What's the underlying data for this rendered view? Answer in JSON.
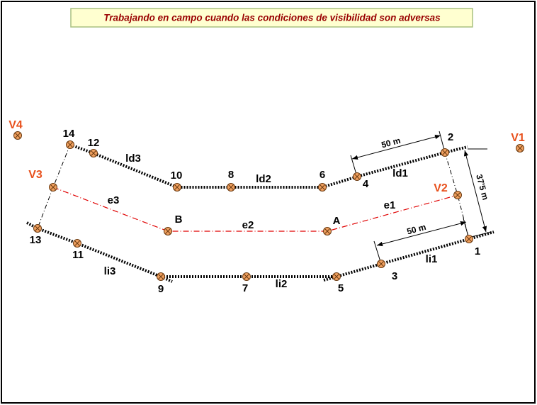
{
  "title": "Trabajando en campo cuando las condiciones de visibilidad son adversas",
  "stations": [
    "V1",
    "V2",
    "V3",
    "V4"
  ],
  "reference_points": [
    "A",
    "B"
  ],
  "points": [
    "1",
    "2",
    "3",
    "4",
    "5",
    "6",
    "7",
    "8",
    "9",
    "10",
    "11",
    "12",
    "13",
    "14"
  ],
  "segments": [
    "ld1",
    "ld2",
    "ld3",
    "e1",
    "e2",
    "e3",
    "li1",
    "li2",
    "li3"
  ],
  "dimensions": [
    "50 m",
    "50 m",
    "37'5 m"
  ]
}
